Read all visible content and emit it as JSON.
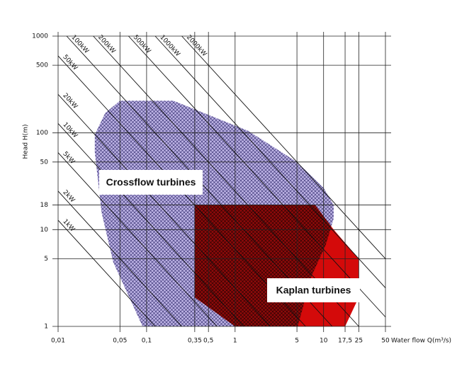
{
  "chart_data": {
    "type": "region",
    "x_label": "Water flow Q(m³/s)",
    "y_label": "Head H(m)",
    "xscale": "log",
    "yscale": "log",
    "xlim": [
      0.01,
      50
    ],
    "ylim": [
      1,
      1000
    ],
    "xticks": [
      {
        "value": 0.01,
        "label": "0,01"
      },
      {
        "value": 0.05,
        "label": "0,05"
      },
      {
        "value": 0.1,
        "label": "0,1"
      },
      {
        "value": 0.35,
        "label": "0,35"
      },
      {
        "value": 0.5,
        "label": "0,5"
      },
      1,
      5,
      10,
      {
        "value": 17.5,
        "label": "17,5"
      },
      25,
      50
    ],
    "yticks": [
      1,
      5,
      10,
      18,
      50,
      100,
      500,
      1000
    ],
    "grid": true,
    "overlap_color": "#8c0a0a",
    "regions": [
      {
        "name": "Crossflow turbines",
        "color": "#bcb2e4",
        "points": [
          [
            0.05,
            215
          ],
          [
            0.2,
            215
          ],
          [
            1.4,
            105
          ],
          [
            5,
            50
          ],
          [
            10,
            27
          ],
          [
            13,
            18
          ],
          [
            13,
            13
          ],
          [
            10.6,
            7
          ],
          [
            7.3,
            3.3
          ],
          [
            5.1,
            1
          ],
          [
            0.09,
            1
          ],
          [
            0.042,
            4.6
          ],
          [
            0.031,
            15
          ],
          [
            0.026,
            63
          ],
          [
            0.026,
            96
          ],
          [
            0.034,
            160
          ]
        ]
      },
      {
        "name": "Kaplan turbines",
        "color": "#d40a0a",
        "points": [
          [
            0.35,
            18
          ],
          [
            8,
            18
          ],
          [
            13,
            10
          ],
          [
            25,
            5
          ],
          [
            25,
            2
          ],
          [
            17.5,
            1
          ],
          [
            1,
            1
          ],
          [
            0.35,
            2
          ]
        ]
      }
    ],
    "power_lines": {
      "values": [
        1,
        2,
        5,
        10,
        20,
        50,
        100,
        200,
        500,
        1000,
        2000
      ],
      "value_labels": [
        "1kW",
        "2kW",
        "5kW",
        "10kW",
        "20kW",
        "50kW",
        "100kW",
        "200kW",
        "500kW",
        "1000kW",
        "2000kW"
      ]
    }
  }
}
